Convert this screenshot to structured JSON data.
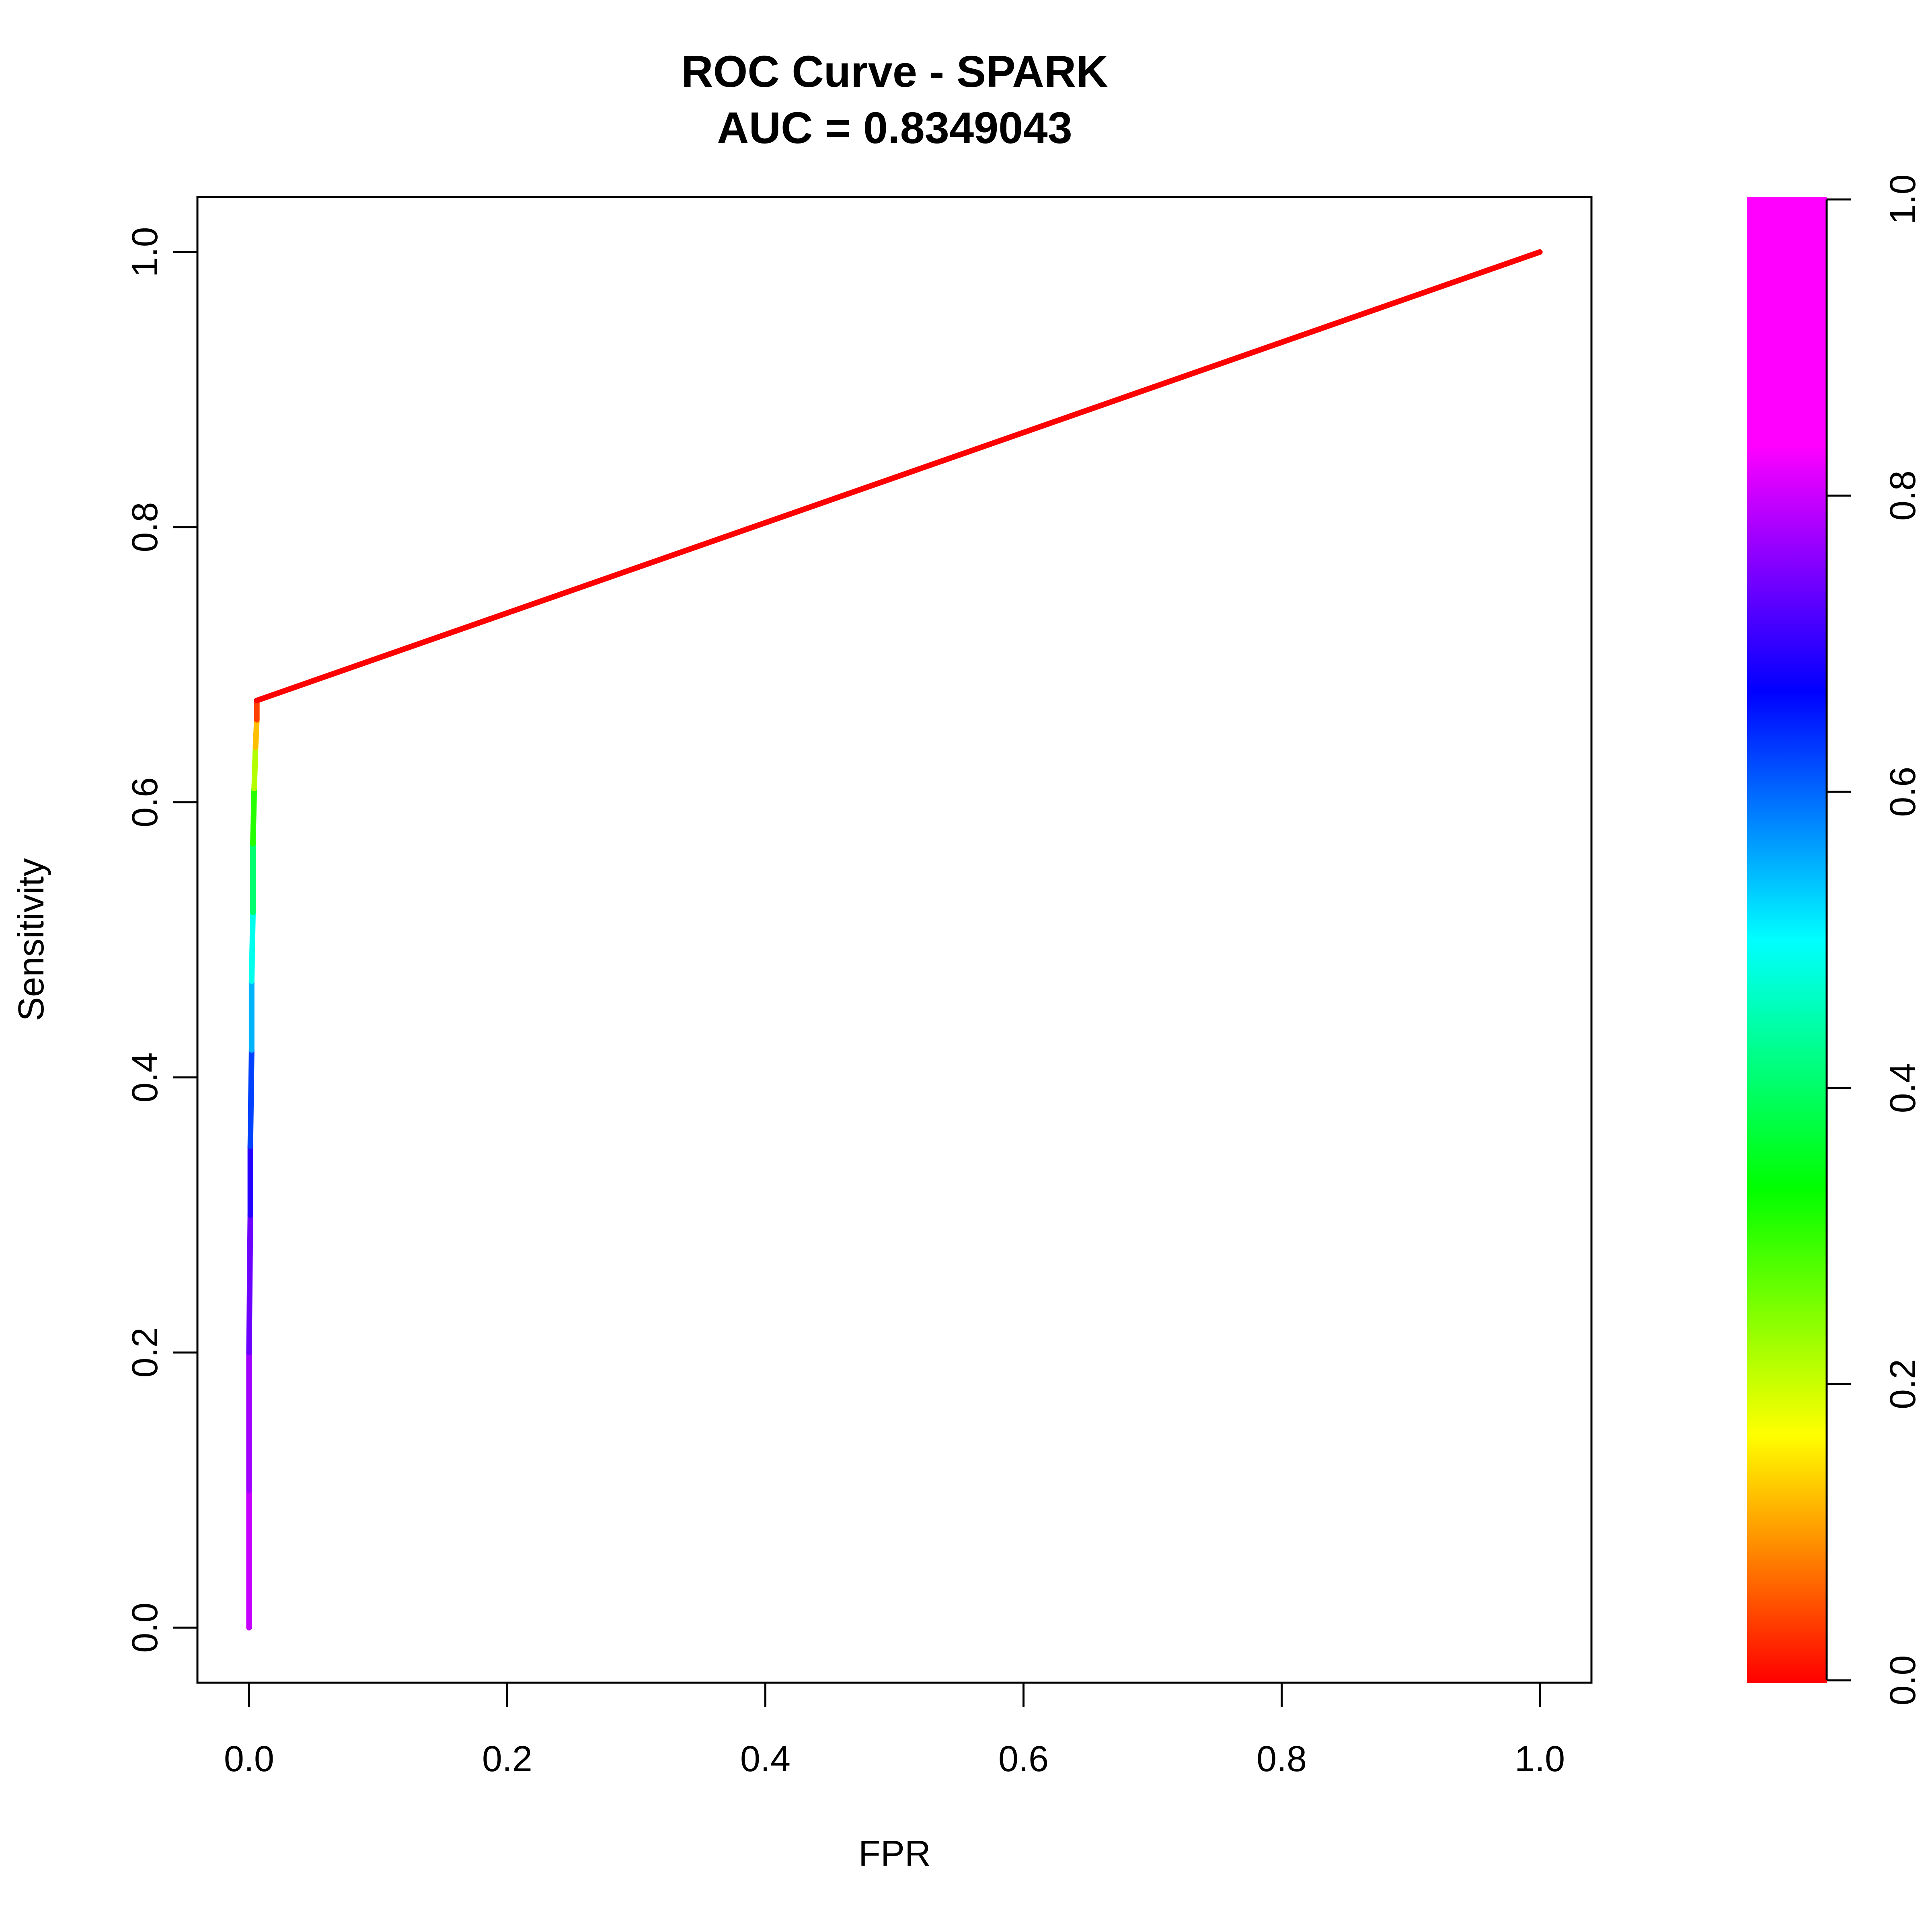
{
  "chart_data": {
    "type": "line",
    "title": "ROC Curve - SPARK",
    "subtitle": "AUC = 0.8349043",
    "xlabel": "FPR",
    "ylabel": "Sensitivity",
    "xlim": [
      -0.04,
      1.04
    ],
    "ylim": [
      -0.04,
      1.04
    ],
    "xticks": [
      "0.0",
      "0.2",
      "0.4",
      "0.6",
      "0.8",
      "1.0"
    ],
    "yticks": [
      "0.0",
      "0.2",
      "0.4",
      "0.6",
      "0.8",
      "1.0"
    ],
    "grid": false,
    "legend": "none",
    "colorbar": {
      "orientation": "vertical",
      "position": "right",
      "range": [
        0,
        1
      ],
      "ticks": [
        "0.0",
        "0.2",
        "0.4",
        "0.6",
        "0.8",
        "1.0"
      ],
      "colormap": "rainbow (red at 0, yellow, green, cyan, blue, magenta at 1)"
    },
    "series": [
      {
        "points": [
          {
            "x": 0.0,
            "y": 0.0,
            "cutoff": 0.97
          },
          {
            "x": 0.0,
            "y": 0.1,
            "cutoff": 0.94
          },
          {
            "x": 0.0,
            "y": 0.2,
            "cutoff": 0.91
          },
          {
            "x": 0.001,
            "y": 0.3,
            "cutoff": 0.86
          },
          {
            "x": 0.001,
            "y": 0.35,
            "cutoff": 0.8
          },
          {
            "x": 0.002,
            "y": 0.42,
            "cutoff": 0.7
          },
          {
            "x": 0.002,
            "y": 0.47,
            "cutoff": 0.62
          },
          {
            "x": 0.003,
            "y": 0.52,
            "cutoff": 0.55
          },
          {
            "x": 0.003,
            "y": 0.57,
            "cutoff": 0.42
          },
          {
            "x": 0.004,
            "y": 0.61,
            "cutoff": 0.32
          },
          {
            "x": 0.005,
            "y": 0.64,
            "cutoff": 0.2
          },
          {
            "x": 0.006,
            "y": 0.66,
            "cutoff": 0.1
          },
          {
            "x": 0.006,
            "y": 0.674,
            "cutoff": 0.0
          },
          {
            "x": 1.0,
            "y": 1.0,
            "cutoff": 0.0
          }
        ]
      }
    ]
  }
}
